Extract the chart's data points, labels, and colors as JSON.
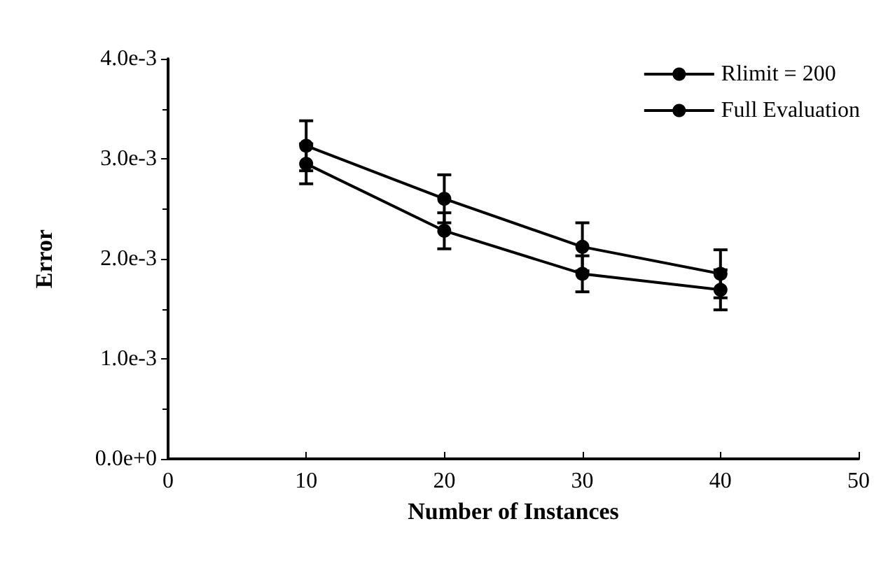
{
  "chart_data": {
    "type": "line",
    "xlabel": "Number of Instances",
    "ylabel": "Error",
    "x": [
      10,
      20,
      30,
      40
    ],
    "series": [
      {
        "name": "Rlimit = 200",
        "color": "#000000",
        "values": [
          0.00313,
          0.0026,
          0.00212,
          0.00185
        ],
        "errors": [
          0.00025,
          0.00024,
          0.00024,
          0.00024
        ]
      },
      {
        "name": "Full Evaluation",
        "color": "#000000",
        "values": [
          0.00295,
          0.00228,
          0.00185,
          0.00169
        ],
        "errors": [
          0.0002,
          0.00018,
          0.00018,
          0.0002
        ]
      }
    ],
    "xlim": [
      0,
      50
    ],
    "xticks": [
      0,
      10,
      20,
      30,
      40,
      50
    ],
    "ylim": [
      0,
      0.004
    ],
    "yticks": [
      {
        "value": 0,
        "label": "0.0e+0"
      },
      {
        "value": 0.001,
        "label": "1.0e-3"
      },
      {
        "value": 0.002,
        "label": "2.0e-3"
      },
      {
        "value": 0.003,
        "label": "3.0e-3"
      },
      {
        "value": 0.004,
        "label": "4.0e-3"
      }
    ],
    "legend": "top right",
    "marker": "circle",
    "grid": false
  }
}
